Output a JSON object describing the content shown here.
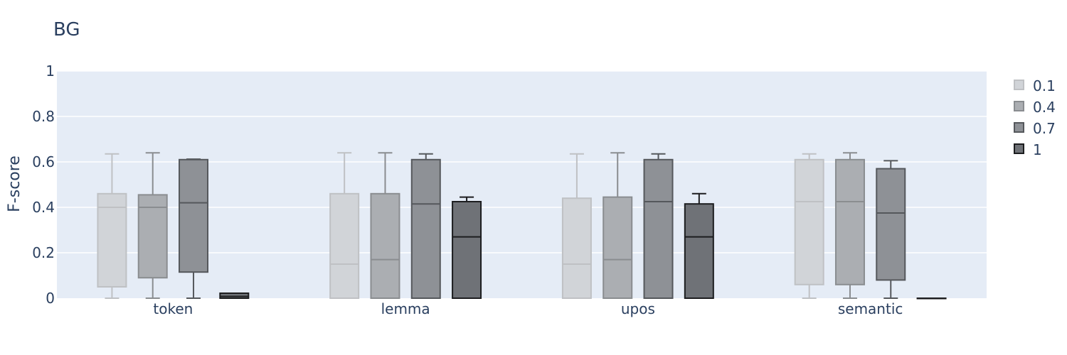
{
  "chart_data": {
    "type": "box",
    "title": "BG",
    "xlabel": "",
    "ylabel": "F-score",
    "ylim": [
      0,
      1
    ],
    "yticks": [
      "0",
      "0.2",
      "0.4",
      "0.6",
      "0.8",
      "1"
    ],
    "grid": true,
    "legend_position": "right",
    "categories": [
      "token",
      "lemma",
      "upos",
      "semantic"
    ],
    "series": [
      {
        "name": "0.1",
        "fill": "#d1d4d8",
        "line": "#bfc1c4",
        "boxes": [
          {
            "min": 0,
            "q1": 0.05,
            "median": 0.4,
            "q3": 0.46,
            "max": 0.635
          },
          {
            "min": 0,
            "q1": 0,
            "median": 0.15,
            "q3": 0.46,
            "max": 0.64
          },
          {
            "min": 0,
            "q1": 0,
            "median": 0.15,
            "q3": 0.44,
            "max": 0.635
          },
          {
            "min": 0,
            "q1": 0.06,
            "median": 0.425,
            "q3": 0.61,
            "max": 0.635
          }
        ]
      },
      {
        "name": "0.4",
        "fill": "#abaeb2",
        "line": "#8a8d90",
        "boxes": [
          {
            "min": 0,
            "q1": 0.09,
            "median": 0.4,
            "q3": 0.455,
            "max": 0.64
          },
          {
            "min": 0,
            "q1": 0,
            "median": 0.17,
            "q3": 0.46,
            "max": 0.64
          },
          {
            "min": 0,
            "q1": 0,
            "median": 0.17,
            "q3": 0.445,
            "max": 0.64
          },
          {
            "min": 0,
            "q1": 0.06,
            "median": 0.425,
            "q3": 0.61,
            "max": 0.64
          }
        ]
      },
      {
        "name": "0.7",
        "fill": "#8e9196",
        "line": "#55585c",
        "boxes": [
          {
            "min": 0,
            "q1": 0.115,
            "median": 0.42,
            "q3": 0.61,
            "max": 0.612
          },
          {
            "min": 0,
            "q1": 0,
            "median": 0.415,
            "q3": 0.61,
            "max": 0.635
          },
          {
            "min": 0,
            "q1": 0,
            "median": 0.425,
            "q3": 0.61,
            "max": 0.635
          },
          {
            "min": 0,
            "q1": 0.08,
            "median": 0.375,
            "q3": 0.57,
            "max": 0.605
          }
        ]
      },
      {
        "name": "1",
        "fill": "#6f7277",
        "line": "#1c1d1f",
        "boxes": [
          {
            "min": 0,
            "q1": 0,
            "median": 0.008,
            "q3": 0.022,
            "max": 0.022
          },
          {
            "min": 0,
            "q1": 0,
            "median": 0.27,
            "q3": 0.425,
            "max": 0.445
          },
          {
            "min": 0,
            "q1": 0,
            "median": 0.27,
            "q3": 0.415,
            "max": 0.46
          },
          {
            "min": 0,
            "q1": 0,
            "median": 0,
            "q3": 0,
            "max": 0
          }
        ]
      }
    ]
  }
}
